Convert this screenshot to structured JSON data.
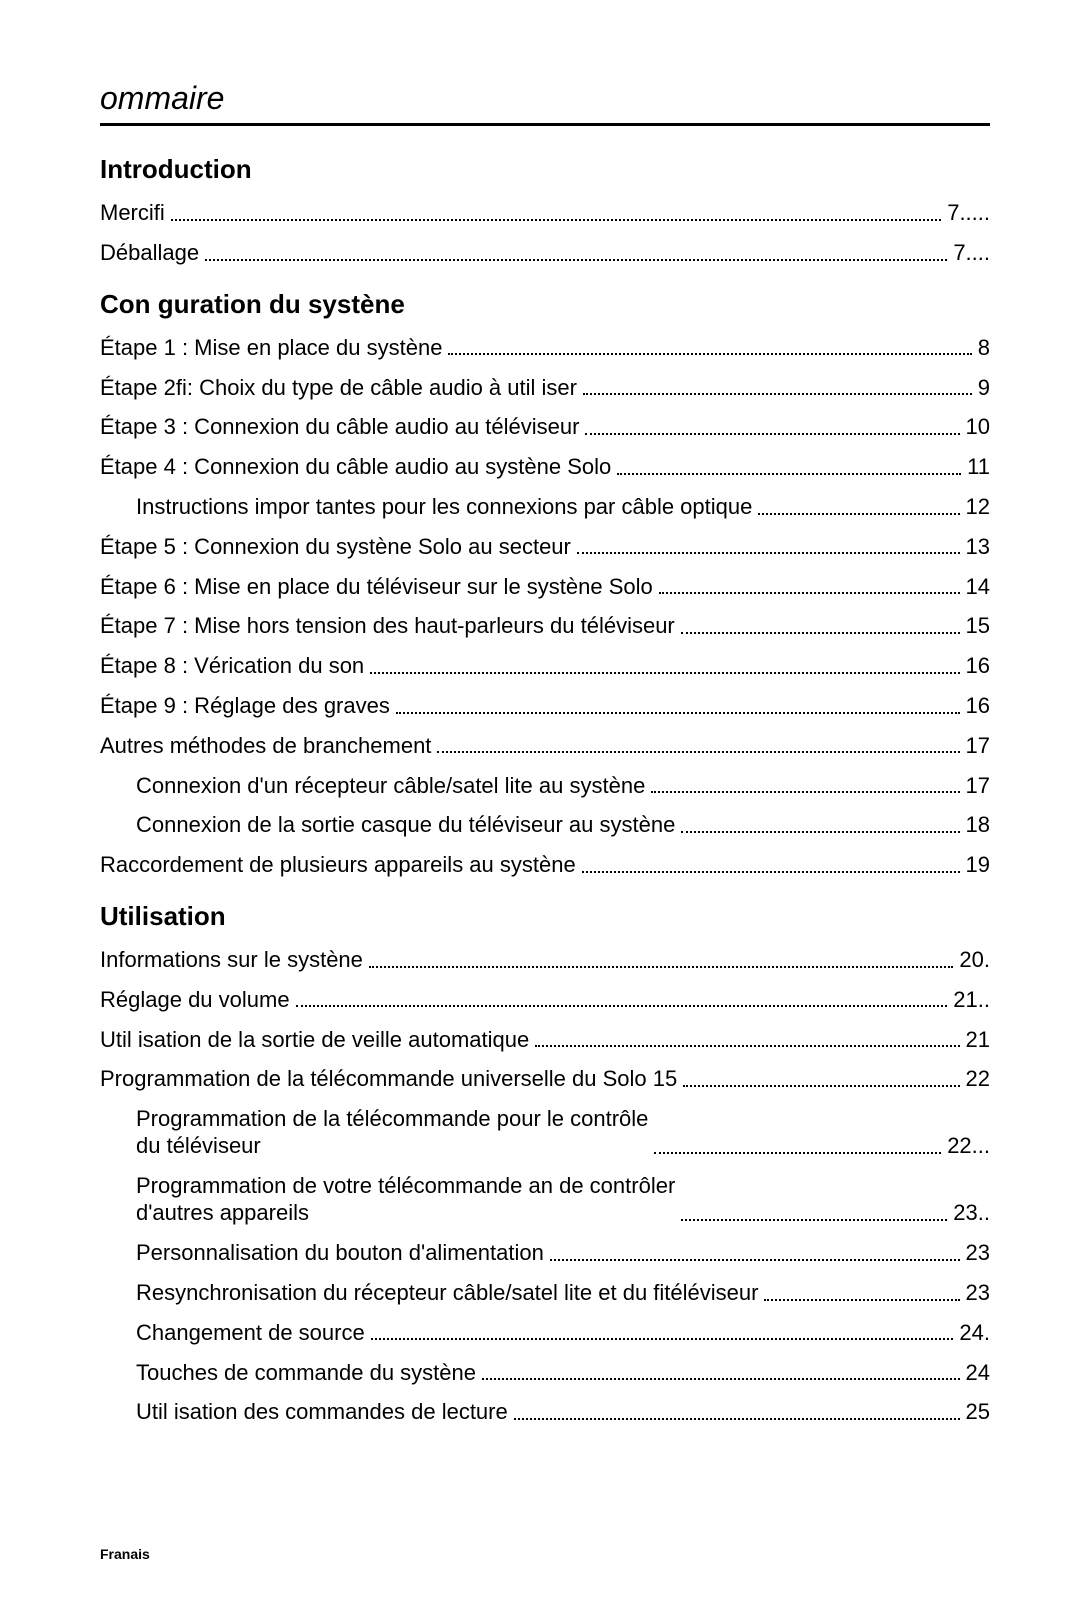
{
  "page_title": "ommaire",
  "footer": "Franais",
  "colors": {
    "text": "#000000",
    "rule": "#000000",
    "background": "#ffffff"
  },
  "typography": {
    "title_pt": 32,
    "section_pt": 26,
    "body_pt": 22,
    "footer_pt": 14
  },
  "sections": [
    {
      "heading": "Introduction",
      "entries": [
        {
          "label": "Mercifi",
          "page": "7.....",
          "indent": 0
        },
        {
          "label": "Déballage",
          "page": "7....",
          "indent": 0
        }
      ]
    },
    {
      "heading": "Con guration du systène",
      "entries": [
        {
          "label": "Étape 1 : Mise en place du systène",
          "page": "8",
          "indent": 0
        },
        {
          "label": "Étape 2fi:  Choix du type de câble audio à util   iser",
          "page": "9",
          "indent": 0
        },
        {
          "label": "Étape 3 :  Connexion du câble audio au téléviseur",
          "page": "10",
          "indent": 0
        },
        {
          "label": "Étape 4 :  Connexion du câble audio au systène Solo",
          "page": "11",
          "indent": 0
        },
        {
          "label": "Instructions impor tantes pour les connexions par câble optique",
          "page": "12",
          "indent": 1
        },
        {
          "label": "Étape 5 :  Connexion du systène Solo au secteur",
          "page": "13",
          "indent": 0
        },
        {
          "label": "Étape 6 :  Mise en place du téléviseur sur le systène Solo",
          "page": "14",
          "indent": 0
        },
        {
          "label": "Étape 7 :  Mise hors tension des haut-parleurs du téléviseur",
          "page": "15",
          "indent": 0
        },
        {
          "label": "Étape 8 : Vérication du son",
          "page": "16",
          "indent": 0
        },
        {
          "label": "Étape 9 : Réglage des graves",
          "page": "16",
          "indent": 0
        },
        {
          "label": "Autres méthodes de branchement",
          "page": "17",
          "indent": 0
        },
        {
          "label": "Connexion d'un récepteur câble/satel   lite au systène",
          "page": "17",
          "indent": 1
        },
        {
          "label": "Connexion de la sortie casque du téléviseur au systène",
          "page": "18",
          "indent": 1
        },
        {
          "label": "Raccordement de plusieurs appareils au systène",
          "page": "19",
          "indent": 0
        }
      ]
    },
    {
      "heading": "Utilisation",
      "entries": [
        {
          "label": "Informations sur le systène",
          "page": "20.",
          "indent": 0
        },
        {
          "label": "Réglage du volume",
          "page": "21..",
          "indent": 0
        },
        {
          "label": "Util isation de la sortie de veille automatique",
          "page": "21",
          "indent": 0
        },
        {
          "label": "Programmation de la télécommande universelle du Solo 15",
          "page": "22",
          "indent": 0
        },
        {
          "label": "Programmation de la télécommande pour le contrôle",
          "label2": "du téléviseur",
          "page": "22...",
          "indent": 1
        },
        {
          "label": "Programmation de votre télécommande an de contrôler",
          "label2": "d'autres appareils",
          "page": "23..",
          "indent": 1
        },
        {
          "label": "Personnalisation du bouton d'alimentation",
          "page": "23",
          "indent": 1
        },
        {
          "label": "Resynchronisation du récepteur câble/satel   lite et du fitéléviseur",
          "page": "23",
          "indent": 1
        },
        {
          "label": "Changement de source",
          "page": "24.",
          "indent": 1
        },
        {
          "label": "Touches de commande du systène",
          "page": "24",
          "indent": 1
        },
        {
          "label": "Util isation des commandes de lecture",
          "page": "25",
          "indent": 1
        }
      ]
    }
  ]
}
